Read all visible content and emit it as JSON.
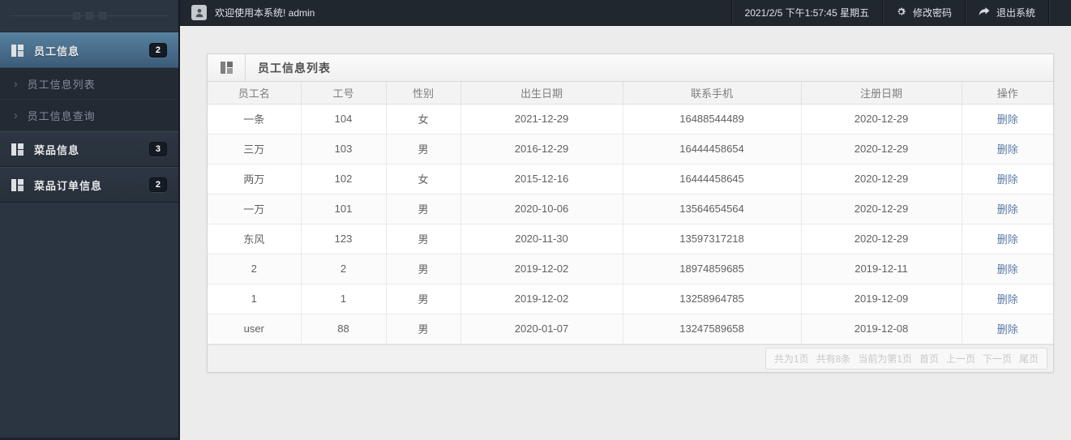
{
  "header": {
    "welcome": "欢迎使用本系统! admin",
    "datetime": "2021/2/5 下午1:57:45 星期五",
    "change_password": "修改密码",
    "logout": "退出系统"
  },
  "sidebar": {
    "items": [
      {
        "type": "main",
        "label": "员工信息",
        "badge": "2",
        "active": true,
        "icon": "layout-grid-icon"
      },
      {
        "type": "sub",
        "label": "员工信息列表",
        "icon": "chevron-right-icon"
      },
      {
        "type": "sub",
        "label": "员工信息查询",
        "icon": "chevron-right-icon"
      },
      {
        "type": "main",
        "label": "菜品信息",
        "badge": "3",
        "active": false,
        "icon": "layout-grid-icon"
      },
      {
        "type": "main",
        "label": "菜品订单信息",
        "badge": "2",
        "active": false,
        "icon": "layout-grid-icon"
      }
    ]
  },
  "panel": {
    "title": "员工信息列表",
    "icon": "layout-grid-icon"
  },
  "table": {
    "columns": [
      "员工名",
      "工号",
      "性别",
      "出生日期",
      "联系手机",
      "注册日期",
      "操作"
    ],
    "delete_label": "删除",
    "rows": [
      [
        "一条",
        "104",
        "女",
        "2021-12-29",
        "16488544489",
        "2020-12-29"
      ],
      [
        "三万",
        "103",
        "男",
        "2016-12-29",
        "16444458654",
        "2020-12-29"
      ],
      [
        "两万",
        "102",
        "女",
        "2015-12-16",
        "16444458645",
        "2020-12-29"
      ],
      [
        "一万",
        "101",
        "男",
        "2020-10-06",
        "13564654564",
        "2020-12-29"
      ],
      [
        "东风",
        "123",
        "男",
        "2020-11-30",
        "13597317218",
        "2020-12-29"
      ],
      [
        "2",
        "2",
        "男",
        "2019-12-02",
        "18974859685",
        "2019-12-11"
      ],
      [
        "1",
        "1",
        "男",
        "2019-12-02",
        "13258964785",
        "2019-12-09"
      ],
      [
        "user",
        "88",
        "男",
        "2020-01-07",
        "13247589658",
        "2019-12-08"
      ]
    ]
  },
  "pagination": {
    "items": [
      {
        "label": "共为1页",
        "link": false
      },
      {
        "label": "共有8条",
        "link": false
      },
      {
        "label": "当前为第1页",
        "link": false
      },
      {
        "label": "首页",
        "link": true
      },
      {
        "label": "上一页",
        "link": true
      },
      {
        "label": "下一页",
        "link": true
      },
      {
        "label": "尾页",
        "link": true
      }
    ]
  },
  "colors": {
    "sidebar_bg": "#2b3541",
    "sidebar_active": "#4a7595",
    "header_bg": "#21272f",
    "content_bg": "#ebeceb",
    "delete_link": "#5b7aa5",
    "badge_bg": "#151b24"
  }
}
